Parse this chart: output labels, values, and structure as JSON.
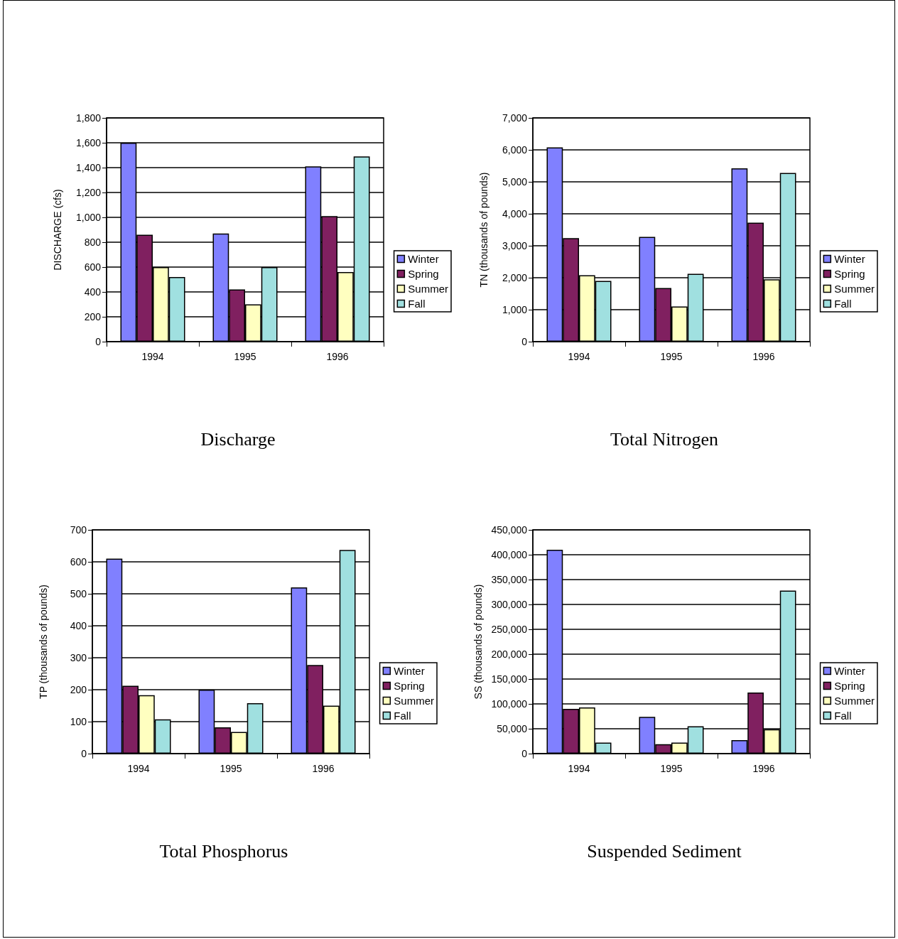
{
  "chart_data": [
    {
      "type": "bar",
      "title": "Discharge",
      "ylabel": "DISCHARGE (cfs)",
      "categories": [
        "1994",
        "1995",
        "1996"
      ],
      "series": [
        {
          "name": "Winter",
          "color": "#8080ff",
          "values": [
            1600,
            870,
            1410
          ]
        },
        {
          "name": "Spring",
          "color": "#802060",
          "values": [
            860,
            420,
            1010
          ]
        },
        {
          "name": "Summer",
          "color": "#ffffc0",
          "values": [
            600,
            300,
            560
          ]
        },
        {
          "name": "Fall",
          "color": "#a0e0e0",
          "values": [
            520,
            600,
            1490
          ]
        }
      ],
      "ylim": [
        0,
        1800
      ],
      "yticks": [
        0,
        200,
        400,
        600,
        800,
        {
          "value": 1000,
          "label": "1,000"
        },
        {
          "value": 1200,
          "label": "1,200"
        },
        {
          "value": 1400,
          "label": "1,400"
        },
        {
          "value": 1600,
          "label": "1,600"
        },
        {
          "value": 1800,
          "label": "1,800"
        }
      ],
      "grid": "y",
      "legend": "right"
    },
    {
      "type": "bar",
      "title": "Total Nitrogen",
      "ylabel": "TN (thousands of pounds)",
      "categories": [
        "1994",
        "1995",
        "1996"
      ],
      "series": [
        {
          "name": "Winter",
          "color": "#8080ff",
          "values": [
            6080,
            3280,
            5420
          ]
        },
        {
          "name": "Spring",
          "color": "#802060",
          "values": [
            3240,
            1680,
            3720
          ]
        },
        {
          "name": "Summer",
          "color": "#ffffc0",
          "values": [
            2080,
            1100,
            1950
          ]
        },
        {
          "name": "Fall",
          "color": "#a0e0e0",
          "values": [
            1900,
            2120,
            5280
          ]
        }
      ],
      "ylim": [
        0,
        7000
      ],
      "yticks": [
        0,
        {
          "value": 1000,
          "label": "1,000"
        },
        {
          "value": 2000,
          "label": "2,000"
        },
        {
          "value": 3000,
          "label": "3,000"
        },
        {
          "value": 4000,
          "label": "4,000"
        },
        {
          "value": 5000,
          "label": "5,000"
        },
        {
          "value": 6000,
          "label": "6,000"
        },
        {
          "value": 7000,
          "label": "7,000"
        }
      ],
      "grid": "y",
      "legend": "right"
    },
    {
      "type": "bar",
      "title": "Total Phosphorus",
      "ylabel": "TP (thousands of pounds)",
      "categories": [
        "1994",
        "1995",
        "1996"
      ],
      "series": [
        {
          "name": "Winter",
          "color": "#8080ff",
          "values": [
            610,
            200,
            520
          ]
        },
        {
          "name": "Spring",
          "color": "#802060",
          "values": [
            212,
            82,
            277
          ]
        },
        {
          "name": "Summer",
          "color": "#ffffc0",
          "values": [
            183,
            68,
            150
          ]
        },
        {
          "name": "Fall",
          "color": "#a0e0e0",
          "values": [
            107,
            158,
            637
          ]
        }
      ],
      "ylim": [
        0,
        700
      ],
      "yticks": [
        0,
        100,
        200,
        300,
        400,
        500,
        600,
        700
      ],
      "grid": "y",
      "legend": "right"
    },
    {
      "type": "bar",
      "title": "Suspended Sediment",
      "ylabel": "SS (thousands of pounds)",
      "categories": [
        "1994",
        "1995",
        "1996"
      ],
      "series": [
        {
          "name": "Winter",
          "color": "#8080ff",
          "values": [
            410000,
            74000,
            27000
          ]
        },
        {
          "name": "Spring",
          "color": "#802060",
          "values": [
            90000,
            19000,
            123000
          ]
        },
        {
          "name": "Summer",
          "color": "#ffffc0",
          "values": [
            93000,
            22000,
            49000
          ]
        },
        {
          "name": "Fall",
          "color": "#a0e0e0",
          "values": [
            22000,
            55000,
            328000
          ]
        }
      ],
      "ylim": [
        0,
        450000
      ],
      "yticks": [
        0,
        {
          "value": 50000,
          "label": "50,000"
        },
        {
          "value": 100000,
          "label": "100,000"
        },
        {
          "value": 150000,
          "label": "150,000"
        },
        {
          "value": 200000,
          "label": "200,000"
        },
        {
          "value": 250000,
          "label": "250,000"
        },
        {
          "value": 300000,
          "label": "300,000"
        },
        {
          "value": 350000,
          "label": "350,000"
        },
        {
          "value": 400000,
          "label": "400,000"
        },
        {
          "value": 450000,
          "label": "450,000"
        }
      ],
      "grid": "y",
      "legend": "right"
    }
  ]
}
